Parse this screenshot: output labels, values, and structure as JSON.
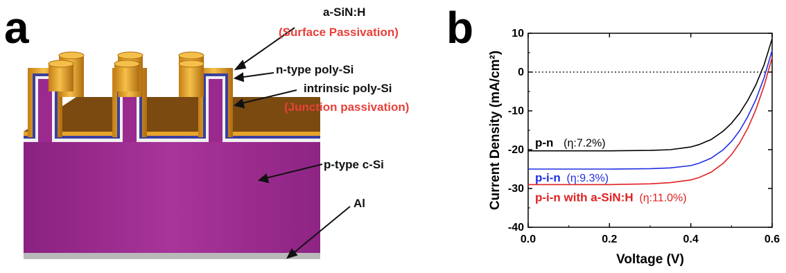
{
  "panel_a": {
    "letter": "a",
    "labels": {
      "sinh": "a-SiN:H",
      "surface_passivation": "(Surface Passivation)",
      "n_poly": "n-type poly-Si",
      "intrinsic_poly": "intrinsic poly-Si",
      "junction_passivation": "(Junction passivation)",
      "p_csi": "p-type c-Si",
      "al": "Al"
    },
    "colors": {
      "substrate": "#9b2a8f",
      "sinh_gold": "#e8a32a",
      "n_poly_blue": "#3b3f9e",
      "intrinsic_white": "#f0f0f0",
      "top_brown": "#7a4a10",
      "al_gray": "#b8b8b8",
      "label_red": "#e8403a"
    }
  },
  "panel_b": {
    "letter": "b"
  },
  "chart_data": {
    "type": "line",
    "xlabel": "Voltage (V)",
    "ylabel": "Current Density (mA/cm²)",
    "xlim": [
      0.0,
      0.6
    ],
    "ylim": [
      -40,
      10
    ],
    "xticks": [
      0.0,
      0.2,
      0.4,
      0.6
    ],
    "xtick_labels": [
      "0.0",
      "0.2",
      "0.4",
      "0.6"
    ],
    "yticks": [
      10,
      0,
      -10,
      -20,
      -30,
      -40
    ],
    "ytick_labels": [
      "10",
      "0",
      "-10",
      "-20",
      "-30",
      "-40"
    ],
    "zero_line": "dotted",
    "series": [
      {
        "name": "p-n",
        "eff": "(η:7.2%)",
        "color": "#000000",
        "x": [
          0.0,
          0.1,
          0.2,
          0.3,
          0.35,
          0.4,
          0.42,
          0.45,
          0.48,
          0.5,
          0.52,
          0.54,
          0.56,
          0.58,
          0.6
        ],
        "y": [
          -20.3,
          -20.3,
          -20.3,
          -20.2,
          -20.0,
          -19.3,
          -18.7,
          -17.4,
          -15.2,
          -13.2,
          -10.6,
          -7.3,
          -3.3,
          1.8,
          8.6
        ]
      },
      {
        "name": "p-i-n",
        "eff": "(η:9.3%)",
        "color": "#1f2fe0",
        "x": [
          0.0,
          0.1,
          0.2,
          0.3,
          0.35,
          0.4,
          0.42,
          0.45,
          0.48,
          0.5,
          0.52,
          0.54,
          0.56,
          0.58,
          0.6
        ],
        "y": [
          -25.0,
          -25.0,
          -25.0,
          -24.9,
          -24.7,
          -24.1,
          -23.5,
          -22.2,
          -20.0,
          -17.9,
          -15.1,
          -11.5,
          -7.1,
          -1.5,
          5.6
        ]
      },
      {
        "name": "p-i-n with a-SiN:H",
        "eff": "(η:11.0%)",
        "color": "#e02020",
        "x": [
          0.0,
          0.1,
          0.2,
          0.3,
          0.35,
          0.4,
          0.42,
          0.45,
          0.48,
          0.5,
          0.52,
          0.54,
          0.56,
          0.58,
          0.6
        ],
        "y": [
          -29.0,
          -29.0,
          -29.0,
          -28.8,
          -28.5,
          -27.8,
          -27.2,
          -25.8,
          -23.5,
          -21.3,
          -18.3,
          -14.5,
          -9.7,
          -3.6,
          3.8
        ]
      }
    ]
  }
}
